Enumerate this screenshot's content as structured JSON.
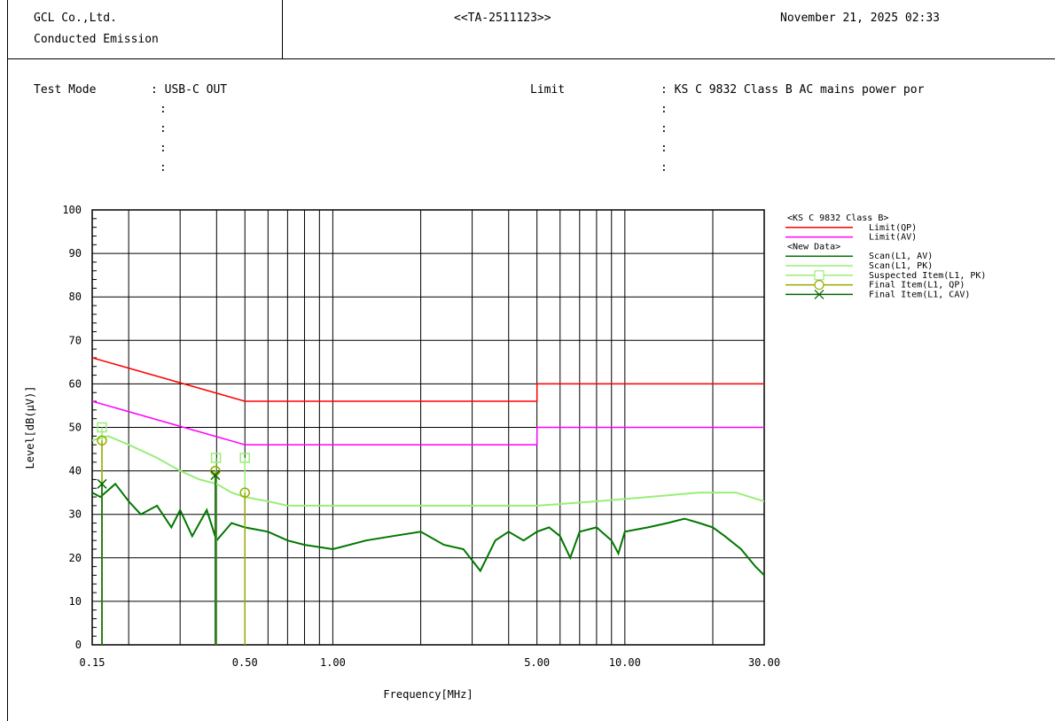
{
  "header": {
    "company": "GCL Co.,Ltd.",
    "report_type": "Conducted Emission",
    "report_id": "<<TA-2511123>>",
    "datetime": "November 21, 2025 02:33"
  },
  "info": {
    "test_mode_label": "Test Mode",
    "test_mode_value": ": USB-C OUT",
    "limit_label": "Limit",
    "limit_value": ": KS C 9832 Class B AC mains power por",
    "colon": ":"
  },
  "chart_data": {
    "type": "line",
    "xscale": "log",
    "xlabel": "Frequency[MHz]",
    "ylabel": "Level[dB(µV)]",
    "xlim": [
      0.15,
      30
    ],
    "ylim": [
      0,
      100
    ],
    "xticks": [
      "0.15",
      "0.50",
      "1.00",
      "5.00",
      "10.00",
      "30.00"
    ],
    "yticks": [
      "0",
      "10",
      "20",
      "30",
      "40",
      "50",
      "60",
      "70",
      "80",
      "90",
      "100"
    ],
    "grid": true,
    "legend_position": "right",
    "legend": [
      {
        "kind": "header",
        "label": "<KS C 9832 Class B>"
      },
      {
        "kind": "line",
        "label": "Limit(QP)",
        "color": "#ff0000"
      },
      {
        "kind": "line",
        "label": "Limit(AV)",
        "color": "#ff00ff"
      },
      {
        "kind": "header",
        "label": "<New Data>"
      },
      {
        "kind": "line",
        "label": "Scan(L1, AV)",
        "color": "#007700"
      },
      {
        "kind": "line",
        "label": "Scan(L1, PK)",
        "color": "#99ee77"
      },
      {
        "kind": "square",
        "label": "Suspected Item(L1, PK)",
        "color": "#99ee77"
      },
      {
        "kind": "circle",
        "label": "Final Item(L1, QP)",
        "color": "#99aa00"
      },
      {
        "kind": "cross",
        "label": "Final Item(L1, CAV)",
        "color": "#006600"
      }
    ],
    "limit_qp": {
      "color": "#ff0000",
      "points": [
        [
          0.15,
          66
        ],
        [
          0.5,
          56
        ],
        [
          5,
          56
        ],
        [
          5,
          60
        ],
        [
          30,
          60
        ]
      ]
    },
    "limit_av": {
      "color": "#ff00ff",
      "points": [
        [
          0.15,
          56
        ],
        [
          0.5,
          46
        ],
        [
          5,
          46
        ],
        [
          5,
          50
        ],
        [
          30,
          50
        ]
      ]
    },
    "scan_pk": {
      "color": "#99ee77",
      "points": [
        [
          0.15,
          47
        ],
        [
          0.17,
          48
        ],
        [
          0.2,
          46
        ],
        [
          0.25,
          43
        ],
        [
          0.3,
          40
        ],
        [
          0.35,
          38
        ],
        [
          0.4,
          37
        ],
        [
          0.45,
          35
        ],
        [
          0.5,
          34
        ],
        [
          0.6,
          33
        ],
        [
          0.7,
          32
        ],
        [
          1,
          32
        ],
        [
          2,
          32
        ],
        [
          5,
          32
        ],
        [
          8,
          33
        ],
        [
          12,
          34
        ],
        [
          18,
          35
        ],
        [
          24,
          35
        ],
        [
          30,
          33
        ]
      ]
    },
    "scan_av": {
      "color": "#007700",
      "points": [
        [
          0.15,
          35
        ],
        [
          0.16,
          34
        ],
        [
          0.18,
          37
        ],
        [
          0.2,
          33
        ],
        [
          0.22,
          30
        ],
        [
          0.25,
          32
        ],
        [
          0.28,
          27
        ],
        [
          0.3,
          31
        ],
        [
          0.33,
          25
        ],
        [
          0.37,
          31
        ],
        [
          0.4,
          24
        ],
        [
          0.45,
          28
        ],
        [
          0.5,
          27
        ],
        [
          0.6,
          26
        ],
        [
          0.7,
          24
        ],
        [
          0.8,
          23
        ],
        [
          1,
          22
        ],
        [
          1.3,
          24
        ],
        [
          1.6,
          25
        ],
        [
          2,
          26
        ],
        [
          2.4,
          23
        ],
        [
          2.8,
          22
        ],
        [
          3.2,
          17
        ],
        [
          3.6,
          24
        ],
        [
          4,
          26
        ],
        [
          4.5,
          24
        ],
        [
          5,
          26
        ],
        [
          5.5,
          27
        ],
        [
          6,
          25
        ],
        [
          6.5,
          20
        ],
        [
          7,
          26
        ],
        [
          8,
          27
        ],
        [
          9,
          24
        ],
        [
          9.5,
          21
        ],
        [
          10,
          26
        ],
        [
          12,
          27
        ],
        [
          14,
          28
        ],
        [
          16,
          29
        ],
        [
          18,
          28
        ],
        [
          20,
          27
        ],
        [
          22,
          25
        ],
        [
          25,
          22
        ],
        [
          28,
          18
        ],
        [
          30,
          16
        ]
      ]
    },
    "suspected_pk": {
      "color": "#99ee77",
      "points": [
        [
          0.162,
          50
        ],
        [
          0.398,
          43
        ],
        [
          0.5,
          43
        ]
      ]
    },
    "final_qp": {
      "color": "#99aa00",
      "points": [
        [
          0.162,
          47
        ],
        [
          0.396,
          40
        ],
        [
          0.5,
          35
        ]
      ]
    },
    "final_cav": {
      "color": "#006600",
      "points": [
        [
          0.162,
          37
        ],
        [
          0.396,
          39
        ]
      ]
    }
  }
}
